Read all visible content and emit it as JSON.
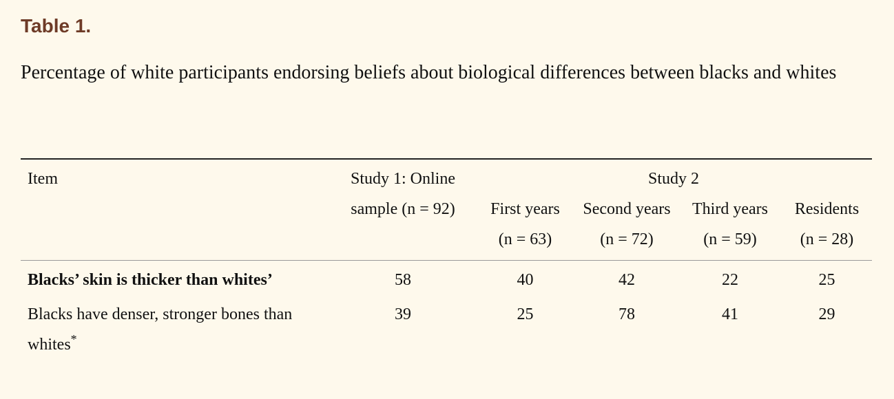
{
  "title": "Table 1.",
  "caption": "Percentage of white participants endorsing beliefs about biological differences between blacks and whites",
  "table": {
    "header": {
      "item": "Item",
      "study1": "Study 1: Online sample (n = 92)",
      "group": "Study 2",
      "subgroups": [
        "First years (n = 63)",
        "Second years (n = 72)",
        "Third years (n = 59)",
        "Residents (n = 28)"
      ]
    },
    "rows": [
      {
        "item": "Blacks’ skin is thicker than whites’",
        "bold": true,
        "values": [
          58,
          40,
          42,
          22,
          25
        ]
      },
      {
        "item": "Blacks have denser, stronger bones than whites",
        "note": "*",
        "values": [
          39,
          25,
          78,
          41,
          29
        ]
      }
    ]
  }
}
